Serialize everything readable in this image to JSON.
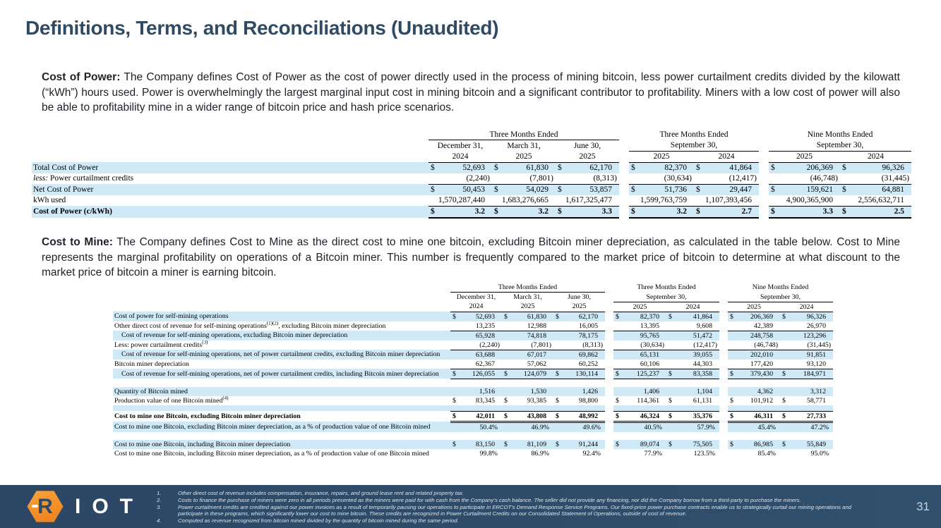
{
  "title": "Definitions, Terms, and Reconciliations (Unaudited)",
  "colors": {
    "title_navy": "#2f4a62",
    "row_highlight": "#cfe9f7",
    "footer_bg": "#2d4a6a",
    "logo_orange": "#f5921e"
  },
  "paragraphs": [
    {
      "lead": "Cost of Power:",
      "text": " The Company defines Cost of Power as the cost of power directly used in the process of mining bitcoin, less power curtailment credits divided by the kilowatt (“kWh”) hours used. Power is overwhelmingly the largest marginal input cost in mining bitcoin and a significant contributor to profitability. Miners with a low cost of power will also be able to profitability mine in a wider range of bitcoin price and hash price scenarios."
    },
    {
      "lead": "Cost to Mine:",
      "text": " The Company defines Cost to Mine as the direct cost to mine one bitcoin, excluding Bitcoin miner depreciation, as calculated in the table below. Cost to Mine represents the marginal profitability on operations of a Bitcoin miner. This number is frequently compared to the market price of bitcoin to determine at what discount to the market price of bitcoin a miner is earning bitcoin."
    }
  ],
  "period_header": [
    {
      "title": "Three Months Ended",
      "title_underline": true,
      "span": 3,
      "months": [
        "December 31,",
        "March 31,",
        "June 30,"
      ],
      "years": [
        "2024",
        "2025",
        "2025"
      ]
    },
    {
      "title": "Three Months Ended",
      "subtitle": "September 30,",
      "span": 2,
      "years": [
        "2025",
        "2024"
      ]
    },
    {
      "title": "Nine Months Ended",
      "subtitle": "September 30,",
      "span": 2,
      "years": [
        "2025",
        "2024"
      ]
    }
  ],
  "table1": {
    "name": "cost-of-power-reconciliation",
    "rows": [
      {
        "hl": true,
        "dollar": true,
        "label": "Total Cost of Power",
        "values": [
          "52,693",
          "61,830",
          "62,170",
          "82,370",
          "41,864",
          "206,369",
          "96,326"
        ]
      },
      {
        "lead_italic": "less:",
        "label": "  Power curtailment credits",
        "bb": "s",
        "values": [
          "(2,240)",
          "(7,801)",
          "(8,313)",
          "(30,634)",
          "(12,417)",
          "(46,748)",
          "(31,445)"
        ]
      },
      {
        "hl": true,
        "dollar": true,
        "label": "Net Cost of Power",
        "values": [
          "50,453",
          "54,029",
          "53,857",
          "51,736",
          "29,447",
          "159,621",
          "64,881"
        ]
      },
      {
        "label": "kWh used",
        "bb": "s",
        "values": [
          "1,570,287,440",
          "1,683,276,665",
          "1,617,325,477",
          "1,599,763,759",
          "1,107,393,456",
          "4,900,365,900",
          "2,556,632,711"
        ]
      },
      {
        "hl": true,
        "bold": true,
        "dollar": true,
        "label": "Cost of Power (c/kWh)",
        "bb": "t",
        "values": [
          "3.2",
          "3.2",
          "3.3",
          "3.2",
          "2.7",
          "3.3",
          "2.5"
        ]
      }
    ]
  },
  "table2": {
    "name": "cost-to-mine-reconciliation",
    "rows": [
      {
        "hl": true,
        "dollar": true,
        "label": "Cost of power for self-mining operations",
        "values": [
          "52,693",
          "61,830",
          "62,170",
          "82,370",
          "41,864",
          "206,369",
          "96,326"
        ]
      },
      {
        "label": "Other direct cost of revenue for self-mining operations",
        "sup": "(1)(2)",
        "label_after": ", excluding Bitcoin miner depreciation",
        "bb": "s",
        "values": [
          "13,235",
          "12,988",
          "16,005",
          "13,395",
          "9,608",
          "42,389",
          "26,970"
        ]
      },
      {
        "hl": true,
        "indent": true,
        "label": "Cost of revenue for self-mining operations, excluding Bitcoin miner depreciation",
        "values": [
          "65,928",
          "74,818",
          "78,175",
          "95,765",
          "51,472",
          "248,758",
          "123,296"
        ]
      },
      {
        "label": "Less: power curtailment credits",
        "sup": "(3)",
        "bb": "s",
        "values": [
          "(2,240)",
          "(7,801)",
          "(8,313)",
          "(30,634)",
          "(12,417)",
          "(46,748)",
          "(31,445)"
        ]
      },
      {
        "hl": true,
        "indent": true,
        "label": "Cost of revenue for self-mining operations, net of power curtailment credits, excluding Bitcoin miner depreciation",
        "values": [
          "63,688",
          "67,017",
          "69,862",
          "65,131",
          "39,055",
          "202,010",
          "91,851"
        ]
      },
      {
        "label": "Bitcoin miner depreciation",
        "bb": "s",
        "values": [
          "62,367",
          "57,062",
          "60,252",
          "60,106",
          "44,303",
          "177,420",
          "93,120"
        ]
      },
      {
        "hl": true,
        "indent": true,
        "dollar": true,
        "bb": "s",
        "label": "Cost of revenue for self-mining operations, net of power curtailment credits, including Bitcoin miner depreciation",
        "values": [
          "126,055",
          "124,079",
          "130,114",
          "125,237",
          "83,358",
          "379,430",
          "184,971"
        ]
      },
      {
        "blank": true
      },
      {
        "hl": true,
        "label": "Quantity of Bitcoin mined",
        "values": [
          "1,516",
          "1,530",
          "1,426",
          "1,406",
          "1,104",
          "4,362",
          "3,312"
        ]
      },
      {
        "dollar": true,
        "label": "Production value of one Bitcoin mined",
        "sup": "(4)",
        "values": [
          "83,345",
          "93,385",
          "98,800",
          "114,361",
          "61,131",
          "101,912",
          "58,771"
        ]
      },
      {
        "blank": true,
        "thin": true,
        "hl": true
      },
      {
        "bold": true,
        "dollar": true,
        "bt": true,
        "bb": "d",
        "label": "Cost to mine one Bitcoin, excluding Bitcoin miner depreciation",
        "values": [
          "42,011",
          "43,808",
          "48,992",
          "46,324",
          "35,376",
          "46,311",
          "27,733"
        ]
      },
      {
        "hl": true,
        "label": "Cost to mine one Bitcoin, excluding Bitcoin miner depreciation, as a % of production value of one Bitcoin mined",
        "values": [
          "50.4%",
          "46.9%",
          "49.6%",
          "40.5%",
          "57.9%",
          "45.4%",
          "47.2%"
        ]
      },
      {
        "blank": true
      },
      {
        "hl": true,
        "dollar": true,
        "label": "Cost to mine one Bitcoin, including Bitcoin miner depreciation",
        "values": [
          "83,150",
          "81,109",
          "91,244",
          "89,074",
          "75,505",
          "86,985",
          "55,849"
        ]
      },
      {
        "label": "Cost to mine one Bitcoin, including Bitcoin miner depreciation, as a % of production value of one Bitcoin mined",
        "values": [
          "99.8%",
          "86.9%",
          "92.4%",
          "77.9%",
          "123.5%",
          "85.4%",
          "95.0%"
        ]
      }
    ]
  },
  "footer": {
    "brand_r": "R",
    "brand_letters": "IOT",
    "page_number": "31",
    "footnotes": [
      {
        "num": "1.",
        "text": "Other direct cost of revenue includes compensation, insurance, repairs, and ground lease rent and related property tax."
      },
      {
        "num": "2.",
        "text": "Costs to finance the purchase of miners were zero in all periods presented as the miners were paid for with cash from the Company’s cash balance. The seller did not provide any financing, nor did the Company borrow from a third-party to purchase the miners."
      },
      {
        "num": "3.",
        "text": "Power curtailment credits are credited against our power invoices as a result of temporarily pausing our operations to participate in ERCOT’s Demand Response Service Programs. Our fixed-price power purchase contracts enable us to strategically curtail our mining operations and participate in these programs, which significantly lower our cost to mine bitcoin. These credits are recognized in Power Curtailment Credits on our Consolidated Statement of Operations, outside of cost of revenue."
      },
      {
        "num": "4.",
        "text": "Computed as revenue recognized from bitcoin mined divided by the quantity of bitcoin mined during the same period."
      }
    ]
  }
}
